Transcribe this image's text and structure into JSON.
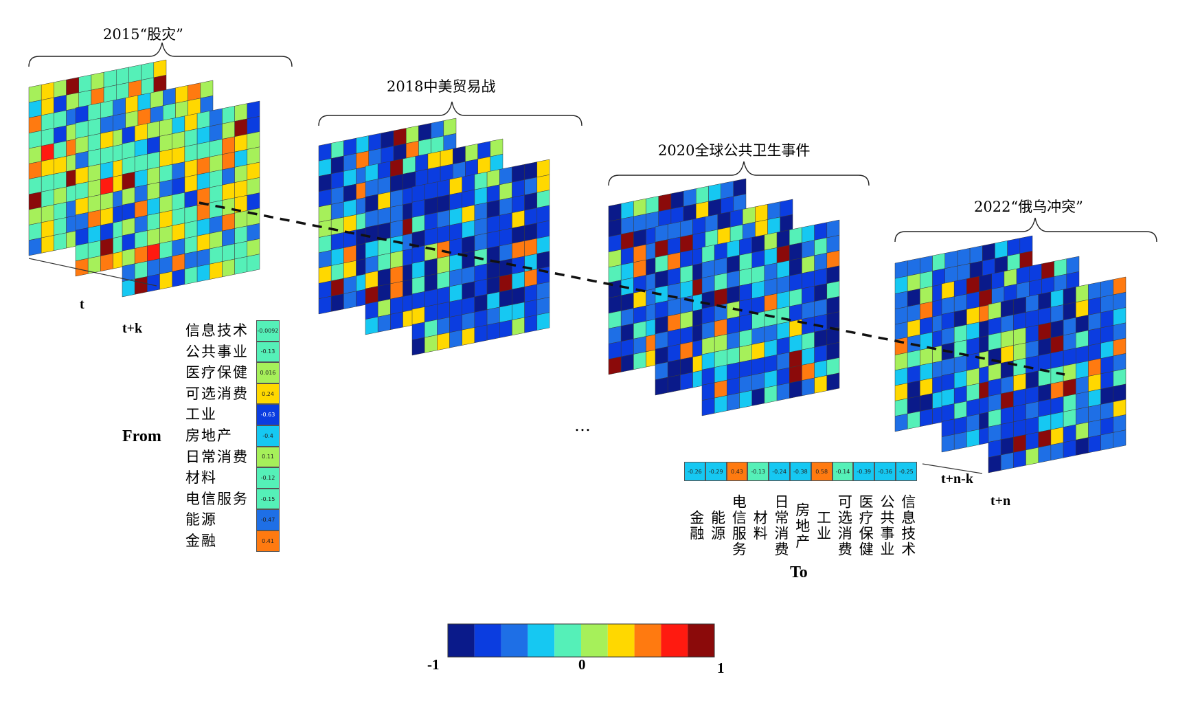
{
  "events": [
    {
      "label": "2015“股灾”"
    },
    {
      "label": "2018中美贸易战"
    },
    {
      "label": "2020全球公共卫生事件"
    },
    {
      "label": "2022“俄乌冲突”"
    }
  ],
  "time_labels": {
    "t": "t",
    "tk": "t+k",
    "tnk": "t+n-k",
    "tn": "t+n"
  },
  "from_title": "From",
  "to_title": "To",
  "ellipsis": "…",
  "sectors_from": [
    "信息技术",
    "公共事业",
    "医疗保健",
    "可选消费",
    "工业",
    "房地产",
    "日常消费",
    "材料",
    "电信服务",
    "能源",
    "金融"
  ],
  "from_values": [
    "-0.0092",
    "-0.13",
    "0.016",
    "0.24",
    "-0.63",
    "-0.4",
    "0.11",
    "-0.12",
    "-0.15",
    "-0.47",
    "0.41"
  ],
  "sectors_to": [
    "金融",
    "能源",
    "电信服务",
    "材料",
    "日常消费",
    "房地产",
    "工业",
    "可选消费",
    "医疗保健",
    "公共事业",
    "信息技术"
  ],
  "to_values": [
    "-0.26",
    "-0.29",
    "0.43",
    "-0.13",
    "-0.24",
    "-0.38",
    "0.58",
    "-0.14",
    "-0.39",
    "-0.36",
    "-0.25"
  ],
  "colorbar": {
    "min_label": "-1",
    "mid_label": "0",
    "max_label": "1",
    "colors": [
      "#0a1a8a",
      "#0b3de0",
      "#1e6fe6",
      "#16c8f2",
      "#55f0b8",
      "#a6f05a",
      "#ffd800",
      "#ff7a10",
      "#ff1a10",
      "#8b0a0a"
    ]
  },
  "chart_data": {
    "type": "heatmap",
    "description_axes": {
      "rows": "From",
      "cols": "To"
    },
    "scale": [
      -1,
      1
    ],
    "from_column_example": [
      -0.0092,
      -0.13,
      0.016,
      0.24,
      -0.63,
      -0.4,
      0.11,
      -0.12,
      -0.15,
      -0.47,
      0.41
    ],
    "to_row_example": [
      -0.26,
      -0.29,
      0.43,
      -0.13,
      -0.24,
      -0.38,
      0.58,
      -0.14,
      -0.39,
      -0.36,
      -0.25
    ]
  }
}
